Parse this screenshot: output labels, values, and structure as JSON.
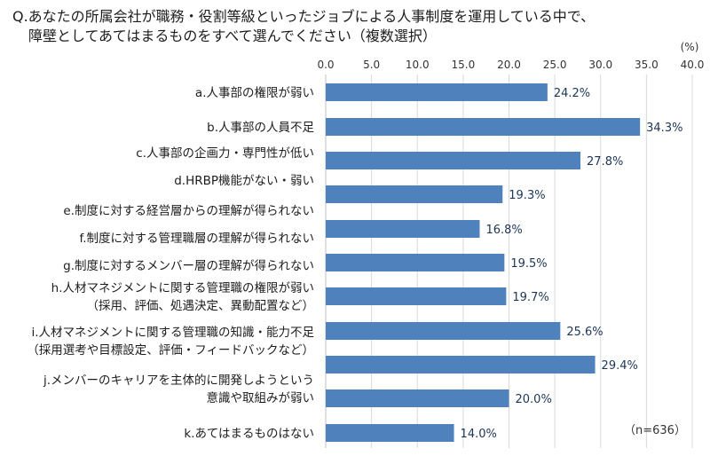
{
  "question": {
    "line1": "Q.あなたの所属会社が職務・役割等級といったジョブによる人事制度を運用している中で、",
    "line2": "障壁としてあてはまるものをすべて選んでください（複数選択）"
  },
  "chart_data": {
    "type": "bar",
    "orientation": "horizontal",
    "unit_label": "(%)",
    "xlim": [
      0,
      40
    ],
    "ticks": [
      "0.0",
      "5.0",
      "10.0",
      "15.0",
      "20.0",
      "25.0",
      "30.0",
      "35.0",
      "40.0"
    ],
    "categories": [
      [
        "a.人事部の権限が弱い"
      ],
      [
        "b.人事部の人員不足"
      ],
      [
        "c.人事部の企画力・専門性が低い"
      ],
      [
        "d.HRBP機能がない・弱い"
      ],
      [
        "e.制度に対する経営層からの理解が得られない"
      ],
      [
        "f.制度に対する管理職層の理解が得られない"
      ],
      [
        "g.制度に対するメンバー層の理解が得られない"
      ],
      [
        "h.人材マネジメントに関する管理職の権限が弱い",
        "（採用、評価、処遇決定、異動配置など）"
      ],
      [
        "i.人材マネジメントに関する管理職の知識・能力不足",
        "（採用選考や目標設定、評価・フィードバックなど）"
      ],
      [
        "j.メンバーのキャリアを主体的に開発しようという",
        "意識や取組みが弱い"
      ],
      [
        "k.あてはまるものはない"
      ]
    ],
    "values": [
      24.2,
      34.3,
      27.8,
      19.3,
      16.8,
      19.5,
      19.7,
      25.6,
      29.4,
      20.0,
      14.0
    ],
    "value_labels": [
      "24.2%",
      "34.3%",
      "27.8%",
      "19.3%",
      "16.8%",
      "19.5%",
      "19.7%",
      "25.6%",
      "29.4%",
      "20.0%",
      "14.0%"
    ],
    "note": "（n=636）",
    "bar_color": "#4f81bd",
    "grid": true
  }
}
